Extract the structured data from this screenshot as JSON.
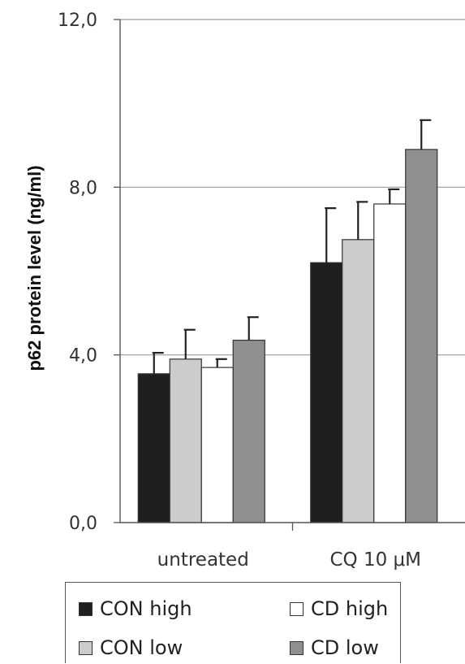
{
  "chart_data": {
    "type": "bar",
    "title": "",
    "xlabel": "",
    "ylabel": "p62 protein level  (ng/ml)",
    "ylim": [
      0,
      12
    ],
    "yticks": [
      "0,0",
      "4,0",
      "8,0",
      "12,0"
    ],
    "ytick_values": [
      0,
      4,
      8,
      12
    ],
    "categories": [
      "untreated",
      "CQ 10 μM"
    ],
    "grid": true,
    "legend_position": "bottom",
    "series": [
      {
        "name": "CON high",
        "color": "#1f1f1f",
        "values": [
          3.55,
          6.2
        ],
        "errors": [
          0.5,
          1.3
        ]
      },
      {
        "name": "CON low",
        "color": "#cccccc",
        "values": [
          3.9,
          6.75
        ],
        "errors": [
          0.7,
          0.9
        ]
      },
      {
        "name": "CD high",
        "color": "#ffffff",
        "values": [
          3.7,
          7.6
        ],
        "errors": [
          0.2,
          0.35
        ]
      },
      {
        "name": "CD low",
        "color": "#8f8f8f",
        "values": [
          4.35,
          8.9
        ],
        "errors": [
          0.55,
          0.7
        ]
      }
    ]
  },
  "legend": {
    "items": [
      {
        "label": "CON high",
        "color": "#1f1f1f"
      },
      {
        "label": "CD high",
        "color": "#ffffff"
      },
      {
        "label": "CON low",
        "color": "#cccccc"
      },
      {
        "label": "CD low",
        "color": "#8f8f8f"
      }
    ]
  }
}
